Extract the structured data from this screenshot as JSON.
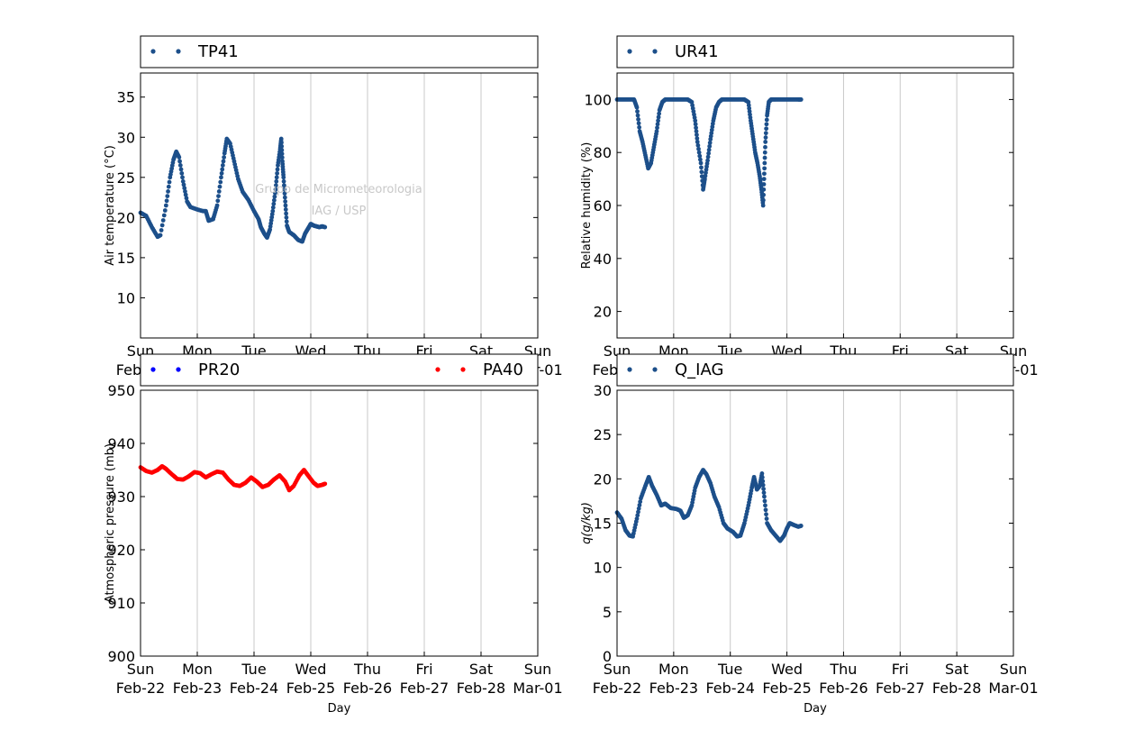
{
  "watermark": {
    "line1": "Grupo de Micrometeorologia",
    "line2": "IAG / USP"
  },
  "x_axis": {
    "label": "Day",
    "ticks": [
      {
        "weekday": "Sun",
        "date": "Feb-22"
      },
      {
        "weekday": "Mon",
        "date": "Feb-23"
      },
      {
        "weekday": "Tue",
        "date": "Feb-24"
      },
      {
        "weekday": "Wed",
        "date": "Feb-25"
      },
      {
        "weekday": "Thu",
        "date": "Feb-26"
      },
      {
        "weekday": "Fri",
        "date": "Feb-27"
      },
      {
        "weekday": "Sat",
        "date": "Feb-28"
      },
      {
        "weekday": "Sun",
        "date": "Mar-01"
      }
    ]
  },
  "chart_data": [
    {
      "id": "temperature",
      "type": "scatter",
      "ylabel": "Air temperature (°C)",
      "ylim": [
        5,
        38
      ],
      "yticks": [
        10,
        15,
        20,
        25,
        30,
        35
      ],
      "xlim": [
        "2015-02-22",
        "2015-03-01"
      ],
      "grid": "vertical",
      "legend": "top",
      "series": [
        {
          "name": "TP41",
          "color": "#1c4f8a",
          "x_unit": "days since Feb-22 00:00",
          "points": [
            [
              0.0,
              20.6
            ],
            [
              0.1,
              20.2
            ],
            [
              0.2,
              18.8
            ],
            [
              0.3,
              17.6
            ],
            [
              0.35,
              17.8
            ],
            [
              0.45,
              21.5
            ],
            [
              0.52,
              25.0
            ],
            [
              0.58,
              27.2
            ],
            [
              0.63,
              28.2
            ],
            [
              0.68,
              27.5
            ],
            [
              0.75,
              24.5
            ],
            [
              0.82,
              22.0
            ],
            [
              0.88,
              21.3
            ],
            [
              1.0,
              21.0
            ],
            [
              1.1,
              20.8
            ],
            [
              1.15,
              20.8
            ],
            [
              1.2,
              19.6
            ],
            [
              1.28,
              19.8
            ],
            [
              1.35,
              21.5
            ],
            [
              1.42,
              25.0
            ],
            [
              1.48,
              28.0
            ],
            [
              1.52,
              29.8
            ],
            [
              1.58,
              29.2
            ],
            [
              1.65,
              27.0
            ],
            [
              1.72,
              24.8
            ],
            [
              1.8,
              23.2
            ],
            [
              1.9,
              22.2
            ],
            [
              2.0,
              20.8
            ],
            [
              2.08,
              19.8
            ],
            [
              2.12,
              18.8
            ],
            [
              2.18,
              18.0
            ],
            [
              2.23,
              17.5
            ],
            [
              2.28,
              18.5
            ],
            [
              2.33,
              20.8
            ],
            [
              2.38,
              23.5
            ],
            [
              2.42,
              26.5
            ],
            [
              2.46,
              28.5
            ],
            [
              2.48,
              29.8
            ],
            [
              2.5,
              27.0
            ],
            [
              2.52,
              25.0
            ],
            [
              2.55,
              22.0
            ],
            [
              2.58,
              19.0
            ],
            [
              2.62,
              18.2
            ],
            [
              2.7,
              17.8
            ],
            [
              2.78,
              17.2
            ],
            [
              2.85,
              17.0
            ],
            [
              2.9,
              18.0
            ],
            [
              2.95,
              18.6
            ],
            [
              3.0,
              19.2
            ],
            [
              3.05,
              19.0
            ],
            [
              3.1,
              18.9
            ],
            [
              3.15,
              18.8
            ],
            [
              3.2,
              18.9
            ],
            [
              3.25,
              18.8
            ]
          ]
        }
      ]
    },
    {
      "id": "humidity",
      "type": "scatter",
      "ylabel": "Relative humidity (%)",
      "ylim": [
        10,
        110
      ],
      "yticks": [
        20,
        40,
        60,
        80,
        100
      ],
      "xlim": [
        "2015-02-22",
        "2015-03-01"
      ],
      "grid": "vertical",
      "legend": "top",
      "series": [
        {
          "name": "UR41",
          "color": "#1c4f8a",
          "x_unit": "days since Feb-22 00:00",
          "points": [
            [
              0.0,
              100
            ],
            [
              0.1,
              100
            ],
            [
              0.2,
              100
            ],
            [
              0.3,
              100
            ],
            [
              0.35,
              97
            ],
            [
              0.4,
              88
            ],
            [
              0.45,
              84
            ],
            [
              0.5,
              79
            ],
            [
              0.55,
              74
            ],
            [
              0.6,
              76
            ],
            [
              0.65,
              82
            ],
            [
              0.7,
              88
            ],
            [
              0.75,
              96
            ],
            [
              0.8,
              99
            ],
            [
              0.85,
              100
            ],
            [
              0.95,
              100
            ],
            [
              1.05,
              100
            ],
            [
              1.15,
              100
            ],
            [
              1.25,
              100
            ],
            [
              1.32,
              99
            ],
            [
              1.38,
              92
            ],
            [
              1.42,
              84
            ],
            [
              1.48,
              76
            ],
            [
              1.52,
              66
            ],
            [
              1.55,
              70
            ],
            [
              1.6,
              77
            ],
            [
              1.65,
              85
            ],
            [
              1.7,
              92
            ],
            [
              1.75,
              97
            ],
            [
              1.8,
              99
            ],
            [
              1.85,
              100
            ],
            [
              1.95,
              100
            ],
            [
              2.05,
              100
            ],
            [
              2.15,
              100
            ],
            [
              2.25,
              100
            ],
            [
              2.32,
              99
            ],
            [
              2.36,
              92
            ],
            [
              2.4,
              86
            ],
            [
              2.44,
              80
            ],
            [
              2.48,
              76
            ],
            [
              2.52,
              71
            ],
            [
              2.55,
              66
            ],
            [
              2.58,
              60
            ],
            [
              2.6,
              72
            ],
            [
              2.62,
              84
            ],
            [
              2.65,
              94
            ],
            [
              2.68,
              99
            ],
            [
              2.72,
              100
            ],
            [
              2.8,
              100
            ],
            [
              2.9,
              100
            ],
            [
              3.0,
              100
            ],
            [
              3.1,
              100
            ],
            [
              3.2,
              100
            ],
            [
              3.25,
              100
            ]
          ]
        }
      ]
    },
    {
      "id": "pressure",
      "type": "scatter",
      "ylabel": "Atmospheric pressure (mb)",
      "ylim": [
        900,
        950
      ],
      "yticks": [
        900,
        910,
        920,
        930,
        940,
        950
      ],
      "xlim": [
        "2015-02-22",
        "2015-03-01"
      ],
      "grid": "vertical",
      "legend": "top",
      "series": [
        {
          "name": "PR20",
          "color": "#0000ff",
          "x_unit": "days since Feb-22 00:00",
          "points": []
        },
        {
          "name": "PA40",
          "color": "#ff0000",
          "x_unit": "days since Feb-22 00:00",
          "points": [
            [
              0.0,
              935.5
            ],
            [
              0.1,
              934.8
            ],
            [
              0.2,
              934.5
            ],
            [
              0.3,
              935.0
            ],
            [
              0.38,
              935.7
            ],
            [
              0.45,
              935.2
            ],
            [
              0.55,
              934.2
            ],
            [
              0.65,
              933.3
            ],
            [
              0.75,
              933.2
            ],
            [
              0.85,
              933.8
            ],
            [
              0.95,
              934.6
            ],
            [
              1.05,
              934.4
            ],
            [
              1.15,
              933.6
            ],
            [
              1.25,
              934.2
            ],
            [
              1.35,
              934.7
            ],
            [
              1.45,
              934.5
            ],
            [
              1.55,
              933.2
            ],
            [
              1.65,
              932.2
            ],
            [
              1.75,
              932.0
            ],
            [
              1.85,
              932.6
            ],
            [
              1.95,
              933.6
            ],
            [
              2.05,
              932.8
            ],
            [
              2.15,
              931.8
            ],
            [
              2.25,
              932.2
            ],
            [
              2.35,
              933.2
            ],
            [
              2.45,
              934.0
            ],
            [
              2.55,
              932.8
            ],
            [
              2.62,
              931.2
            ],
            [
              2.7,
              932.0
            ],
            [
              2.8,
              934.0
            ],
            [
              2.88,
              935.0
            ],
            [
              2.95,
              934.0
            ],
            [
              3.05,
              932.6
            ],
            [
              3.12,
              932.0
            ],
            [
              3.2,
              932.2
            ],
            [
              3.25,
              932.4
            ]
          ]
        }
      ]
    },
    {
      "id": "specific-humidity",
      "type": "scatter",
      "ylabel": "q(g/kg)",
      "ylim": [
        0,
        30
      ],
      "yticks": [
        0,
        5,
        10,
        15,
        20,
        25,
        30
      ],
      "xlim": [
        "2015-02-22",
        "2015-03-01"
      ],
      "grid": "vertical",
      "legend": "top",
      "series": [
        {
          "name": "Q_IAG",
          "color": "#1c4f8a",
          "x_unit": "days since Feb-22 00:00",
          "points": [
            [
              0.0,
              16.2
            ],
            [
              0.08,
              15.5
            ],
            [
              0.15,
              14.2
            ],
            [
              0.22,
              13.6
            ],
            [
              0.28,
              13.5
            ],
            [
              0.35,
              15.5
            ],
            [
              0.42,
              17.8
            ],
            [
              0.5,
              19.2
            ],
            [
              0.56,
              20.2
            ],
            [
              0.62,
              19.2
            ],
            [
              0.7,
              18.2
            ],
            [
              0.78,
              17.0
            ],
            [
              0.85,
              17.2
            ],
            [
              0.95,
              16.7
            ],
            [
              1.05,
              16.6
            ],
            [
              1.12,
              16.4
            ],
            [
              1.18,
              15.6
            ],
            [
              1.25,
              15.9
            ],
            [
              1.32,
              17.0
            ],
            [
              1.38,
              19.0
            ],
            [
              1.45,
              20.2
            ],
            [
              1.52,
              21.0
            ],
            [
              1.58,
              20.5
            ],
            [
              1.65,
              19.5
            ],
            [
              1.72,
              18.0
            ],
            [
              1.8,
              16.8
            ],
            [
              1.88,
              15.0
            ],
            [
              1.95,
              14.4
            ],
            [
              2.05,
              14.0
            ],
            [
              2.12,
              13.5
            ],
            [
              2.18,
              13.6
            ],
            [
              2.25,
              15.0
            ],
            [
              2.32,
              17.0
            ],
            [
              2.38,
              19.0
            ],
            [
              2.42,
              20.2
            ],
            [
              2.47,
              18.8
            ],
            [
              2.52,
              19.2
            ],
            [
              2.56,
              20.6
            ],
            [
              2.6,
              18.0
            ],
            [
              2.65,
              15.0
            ],
            [
              2.72,
              14.2
            ],
            [
              2.8,
              13.6
            ],
            [
              2.88,
              13.0
            ],
            [
              2.95,
              13.6
            ],
            [
              3.0,
              14.4
            ],
            [
              3.05,
              15.0
            ],
            [
              3.12,
              14.8
            ],
            [
              3.2,
              14.6
            ],
            [
              3.25,
              14.7
            ]
          ]
        }
      ]
    }
  ]
}
